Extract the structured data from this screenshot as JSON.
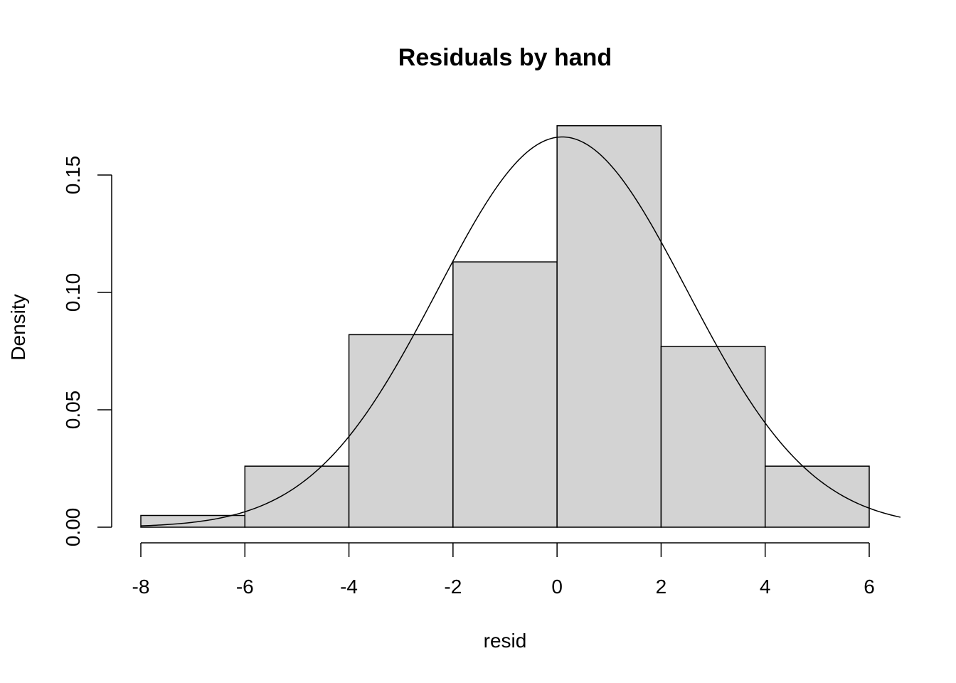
{
  "chart_data": {
    "type": "bar",
    "title": "Residuals by hand",
    "xlabel": "resid",
    "ylabel": "Density",
    "bins": [
      {
        "start": -8,
        "end": -6,
        "density": 0.005
      },
      {
        "start": -6,
        "end": -4,
        "density": 0.026
      },
      {
        "start": -4,
        "end": -2,
        "density": 0.082
      },
      {
        "start": -2,
        "end": 0,
        "density": 0.113
      },
      {
        "start": 0,
        "end": 2,
        "density": 0.171
      },
      {
        "start": 2,
        "end": 4,
        "density": 0.077
      },
      {
        "start": 4,
        "end": 6,
        "density": 0.026
      }
    ],
    "x_ticks": [
      -8,
      -6,
      -4,
      -2,
      0,
      2,
      4,
      6
    ],
    "x_tick_labels": [
      "-8",
      "-6",
      "-4",
      "-2",
      "0",
      "2",
      "4",
      "6"
    ],
    "y_ticks": [
      0.0,
      0.05,
      0.1,
      0.15
    ],
    "y_tick_labels": [
      "0.00",
      "0.05",
      "0.10",
      "0.15"
    ],
    "xlim": [
      -8,
      6.6
    ],
    "ylim": [
      0,
      0.175
    ],
    "grid": false,
    "overlay_curve": {
      "type": "normal-density",
      "mean": 0.1,
      "sd": 2.4
    },
    "colors": {
      "bar_fill": "#d3d3d3",
      "bar_stroke": "#000000",
      "curve": "#000000",
      "axis": "#000000"
    }
  }
}
